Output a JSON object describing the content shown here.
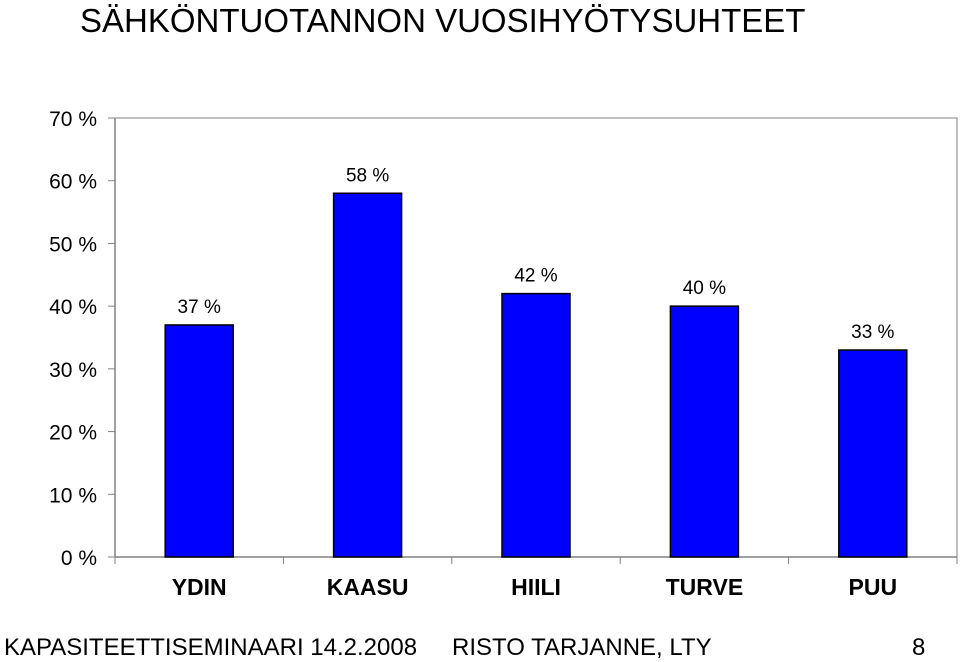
{
  "title": "SÄHKÖNTUOTANNON VUOSIHYÖTYSUHTEET",
  "footer": {
    "event": "KAPASITEETTISEMINAARI 14.2.2008",
    "author": "RISTO TARJANNE, LTY",
    "page": "8"
  },
  "chart_data": {
    "type": "bar",
    "title": "SÄHKÖNTUOTANNON VUOSIHYÖTYSUHTEET",
    "xlabel": "",
    "ylabel": "",
    "categories": [
      "YDIN",
      "KAASU",
      "HIILI",
      "TURVE",
      "PUU"
    ],
    "values": [
      37,
      58,
      42,
      40,
      33
    ],
    "data_labels": [
      "37 %",
      "58 %",
      "42 %",
      "40 %",
      "33 %"
    ],
    "ylim": [
      0,
      70
    ],
    "yticks": [
      0,
      10,
      20,
      30,
      40,
      50,
      60,
      70
    ],
    "ytick_labels": [
      "0 %",
      "10 %",
      "20 %",
      "30 %",
      "40 %",
      "50 %",
      "60 %",
      "70 %"
    ],
    "bar_color": "#0000ff",
    "grid": false,
    "legend": "none"
  }
}
